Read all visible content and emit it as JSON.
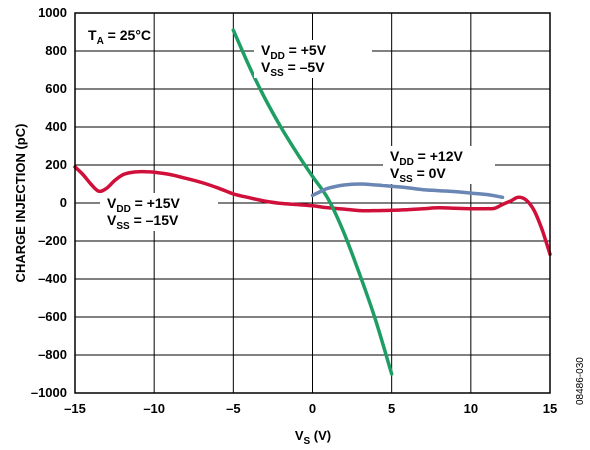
{
  "chart_data": {
    "type": "line",
    "xlabel": "V",
    "xlabel_sub": "S",
    "xlabel_unit": " (V)",
    "ylabel": "CHARGE INJECTION (pC)",
    "xlim": [
      -15,
      15
    ],
    "ylim": [
      -1000,
      1000
    ],
    "xticks": [
      -15,
      -10,
      -5,
      0,
      5,
      10,
      15
    ],
    "xtick_labels": [
      "–15",
      "–10",
      "–5",
      "0",
      "5",
      "10",
      "15"
    ],
    "yticks": [
      1000,
      800,
      600,
      400,
      200,
      0,
      -200,
      -400,
      -600,
      -800,
      -1000
    ],
    "ytick_labels": [
      "1000",
      "800",
      "600",
      "400",
      "200",
      "0",
      "–200",
      "–400",
      "–600",
      "–800",
      "–1000"
    ],
    "grid": true,
    "figure_id": "08486-030",
    "condition": {
      "main": "T",
      "sub": "A",
      "rest": " = 25°C"
    },
    "series": [
      {
        "color": "#d0103a",
        "x": [
          -15,
          -14.5,
          -14,
          -13.5,
          -13,
          -12.5,
          -12,
          -11.5,
          -11,
          -10.5,
          -10,
          -9,
          -8,
          -7,
          -6,
          -5,
          -4,
          -3,
          -2,
          -1,
          0,
          1,
          2,
          3,
          4,
          5,
          6,
          7,
          8,
          9,
          10,
          11,
          11.5,
          12,
          12.5,
          13,
          13.5,
          14,
          14.5,
          15
        ],
        "y": [
          190,
          150,
          100,
          62,
          78,
          118,
          148,
          160,
          165,
          165,
          162,
          150,
          130,
          108,
          80,
          48,
          28,
          10,
          -2,
          -8,
          -15,
          -25,
          -32,
          -40,
          -40,
          -38,
          -35,
          -30,
          -25,
          -28,
          -30,
          -30,
          -28,
          -8,
          10,
          30,
          15,
          -40,
          -140,
          -270
        ]
      },
      {
        "color": "#1f9e64",
        "x": [
          -5,
          -4,
          -3,
          -2,
          -1,
          0,
          1,
          2,
          3,
          4,
          5
        ],
        "y": [
          910,
          720,
          550,
          400,
          265,
          140,
          20,
          -160,
          -380,
          -620,
          -900
        ]
      },
      {
        "color": "#6a86b4",
        "x": [
          0,
          0.5,
          1,
          2,
          3,
          4,
          5,
          6,
          7,
          8,
          9,
          10,
          11,
          12
        ],
        "y": [
          40,
          60,
          78,
          95,
          100,
          95,
          88,
          80,
          70,
          65,
          60,
          52,
          45,
          30
        ]
      }
    ],
    "annotations": [
      {
        "lines": [
          {
            "main": "V",
            "sub": "DD",
            "rest": " = +5V"
          },
          {
            "main": "V",
            "sub": "SS",
            "rest": " = –5V"
          }
        ]
      },
      {
        "lines": [
          {
            "main": "V",
            "sub": "DD",
            "rest": " = +12V"
          },
          {
            "main": "V",
            "sub": "SS",
            "rest": " = 0V"
          }
        ]
      },
      {
        "lines": [
          {
            "main": "V",
            "sub": "DD",
            "rest": " = +15V"
          },
          {
            "main": "V",
            "sub": "SS",
            "rest": " = –15V"
          }
        ]
      }
    ]
  }
}
